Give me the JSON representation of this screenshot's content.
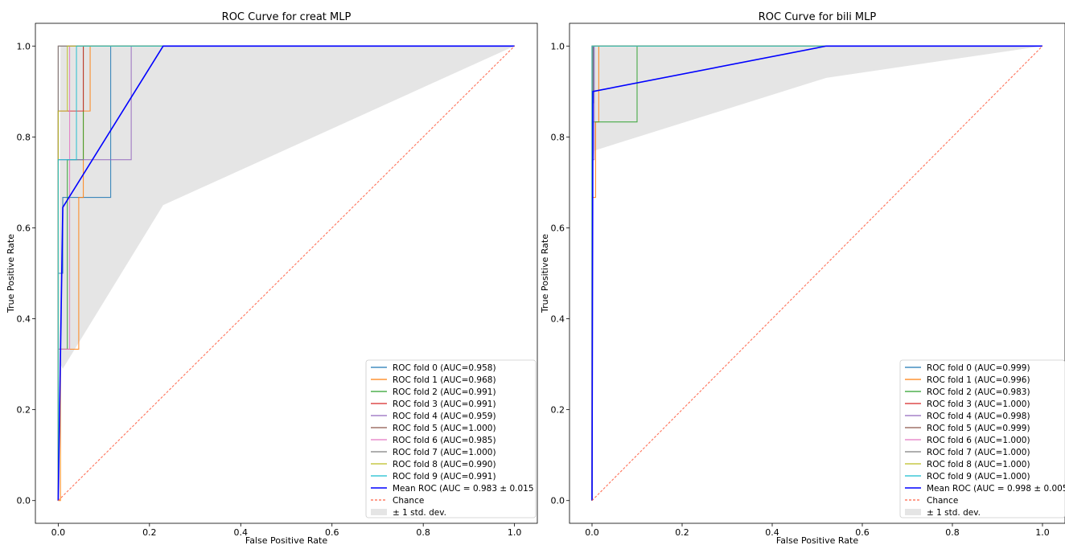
{
  "chart_data": [
    {
      "type": "line",
      "title": "ROC Curve for creat MLP",
      "xlabel": "False Positive Rate",
      "ylabel": "True Positive Rate",
      "xlim": [
        -0.05,
        1.05
      ],
      "ylim": [
        -0.05,
        1.05
      ],
      "xticks": [
        "0.0",
        "0.2",
        "0.4",
        "0.6",
        "0.8",
        "1.0"
      ],
      "yticks": [
        "0.0",
        "0.2",
        "0.4",
        "0.6",
        "0.8",
        "1.0"
      ],
      "grid": false,
      "legend_position": "lower right",
      "series": [
        {
          "name": "ROC fold 0 (AUC=0.958)",
          "color": "#1f77b4",
          "x": [
            0,
            0,
            0.01,
            0.01,
            0.115,
            0.115,
            1
          ],
          "y": [
            0,
            0.5,
            0.5,
            0.667,
            0.667,
            1,
            1
          ]
        },
        {
          "name": "ROC fold 1 (AUC=0.968)",
          "color": "#ff7f0e",
          "x": [
            0,
            0.005,
            0.005,
            0.045,
            0.045,
            0.055,
            0.055,
            0.07,
            0.07,
            1
          ],
          "y": [
            0,
            0,
            0.333,
            0.333,
            0.667,
            0.667,
            0.857,
            0.857,
            1,
            1
          ]
        },
        {
          "name": "ROC fold 2 (AUC=0.991)",
          "color": "#2ca02c",
          "x": [
            0,
            0,
            0.02,
            0.02,
            0.055,
            0.055,
            1
          ],
          "y": [
            0,
            0.333,
            0.333,
            0.75,
            0.75,
            1,
            1
          ]
        },
        {
          "name": "ROC fold 3 (AUC=0.991)",
          "color": "#d62728",
          "x": [
            0,
            0,
            0.055,
            0.055,
            1
          ],
          "y": [
            0,
            0.857,
            0.857,
            1,
            1
          ]
        },
        {
          "name": "ROC fold 4 (AUC=0.959)",
          "color": "#9467bd",
          "x": [
            0,
            0,
            0.16,
            0.16,
            1
          ],
          "y": [
            0,
            0.75,
            0.75,
            1,
            1
          ]
        },
        {
          "name": "ROC fold 5 (AUC=1.000)",
          "color": "#8c564b",
          "x": [
            0,
            0,
            1
          ],
          "y": [
            0,
            1,
            1
          ]
        },
        {
          "name": "ROC fold 6 (AUC=0.985)",
          "color": "#e377c2",
          "x": [
            0,
            0,
            0.025,
            0.025,
            1
          ],
          "y": [
            0,
            0.333,
            0.333,
            1,
            1
          ]
        },
        {
          "name": "ROC fold 7 (AUC=1.000)",
          "color": "#7f7f7f",
          "x": [
            0,
            0,
            1
          ],
          "y": [
            0,
            1,
            1
          ]
        },
        {
          "name": "ROC fold 8 (AUC=0.990)",
          "color": "#bcbd22",
          "x": [
            0,
            0,
            0.02,
            0.02,
            1
          ],
          "y": [
            0,
            0.857,
            0.857,
            1,
            1
          ]
        },
        {
          "name": "ROC fold 9 (AUC=0.991)",
          "color": "#17becf",
          "x": [
            0,
            0,
            0.04,
            0.04,
            1
          ],
          "y": [
            0,
            0.75,
            0.75,
            1,
            1
          ]
        },
        {
          "name": "Mean ROC (AUC = 0.983 ± 0.015",
          "color": "#0000ff",
          "x": [
            0,
            0.01,
            0.23,
            1
          ],
          "y": [
            0,
            0.645,
            1,
            1
          ]
        },
        {
          "name": "Chance",
          "color": "#ff6347",
          "dashed": true,
          "x": [
            0,
            1
          ],
          "y": [
            0,
            1
          ]
        }
      ],
      "band": {
        "name": "± 1 std. dev.",
        "color": "#d3d3d3",
        "x": [
          0,
          0.005,
          0.01,
          0.23,
          1
        ],
        "upper": [
          0,
          1,
          1,
          1,
          1
        ],
        "lower": [
          0,
          0.3,
          0.29,
          0.65,
          1
        ]
      }
    },
    {
      "type": "line",
      "title": "ROC Curve for bili MLP",
      "xlabel": "False Positive Rate",
      "ylabel": "True Positive Rate",
      "xlim": [
        -0.05,
        1.05
      ],
      "ylim": [
        -0.05,
        1.05
      ],
      "xticks": [
        "0.0",
        "0.2",
        "0.4",
        "0.6",
        "0.8",
        "1.0"
      ],
      "yticks": [
        "0.0",
        "0.2",
        "0.4",
        "0.6",
        "0.8",
        "1.0"
      ],
      "grid": false,
      "legend_position": "lower right",
      "series": [
        {
          "name": "ROC fold 0 (AUC=0.999)",
          "color": "#1f77b4",
          "x": [
            0,
            0,
            0.003,
            0.003,
            1
          ],
          "y": [
            0,
            0.875,
            0.875,
            1,
            1
          ]
        },
        {
          "name": "ROC fold 1 (AUC=0.996)",
          "color": "#ff7f0e",
          "x": [
            0,
            0,
            0.008,
            0.008,
            0.015,
            0.015,
            1
          ],
          "y": [
            0,
            0.667,
            0.667,
            0.833,
            0.833,
            1,
            1
          ]
        },
        {
          "name": "ROC fold 2 (AUC=0.983)",
          "color": "#2ca02c",
          "x": [
            0,
            0,
            0.1,
            0.1,
            1
          ],
          "y": [
            0,
            0.833,
            0.833,
            1,
            1
          ]
        },
        {
          "name": "ROC fold 3 (AUC=1.000)",
          "color": "#d62728",
          "x": [
            0,
            0,
            1
          ],
          "y": [
            0,
            1,
            1
          ]
        },
        {
          "name": "ROC fold 4 (AUC=0.998)",
          "color": "#9467bd",
          "x": [
            0,
            0,
            0.005,
            0.005,
            1
          ],
          "y": [
            0,
            0.75,
            0.75,
            1,
            1
          ]
        },
        {
          "name": "ROC fold 5 (AUC=0.999)",
          "color": "#8c564b",
          "x": [
            0,
            0,
            0.002,
            0.002,
            1
          ],
          "y": [
            0,
            0.9,
            0.9,
            1,
            1
          ]
        },
        {
          "name": "ROC fold 6 (AUC=1.000)",
          "color": "#e377c2",
          "x": [
            0,
            0,
            1
          ],
          "y": [
            0,
            1,
            1
          ]
        },
        {
          "name": "ROC fold 7 (AUC=1.000)",
          "color": "#7f7f7f",
          "x": [
            0,
            0,
            1
          ],
          "y": [
            0,
            1,
            1
          ]
        },
        {
          "name": "ROC fold 8 (AUC=1.000)",
          "color": "#bcbd22",
          "x": [
            0,
            0,
            1
          ],
          "y": [
            0,
            1,
            1
          ]
        },
        {
          "name": "ROC fold 9 (AUC=1.000)",
          "color": "#17becf",
          "x": [
            0,
            0,
            1
          ],
          "y": [
            0,
            1,
            1
          ]
        },
        {
          "name": "Mean ROC (AUC = 0.998 ± 0.005",
          "color": "#0000ff",
          "x": [
            0,
            0.002,
            0.52,
            1
          ],
          "y": [
            0,
            0.9,
            1,
            1
          ]
        },
        {
          "name": "Chance",
          "color": "#ff6347",
          "dashed": true,
          "x": [
            0,
            1
          ],
          "y": [
            0,
            1
          ]
        }
      ],
      "band": {
        "name": "± 1 std. dev.",
        "color": "#d3d3d3",
        "x": [
          0,
          0.002,
          0.005,
          0.52,
          1
        ],
        "upper": [
          0,
          1,
          1,
          1,
          1
        ],
        "lower": [
          0,
          0.75,
          0.77,
          0.93,
          1
        ]
      }
    }
  ]
}
